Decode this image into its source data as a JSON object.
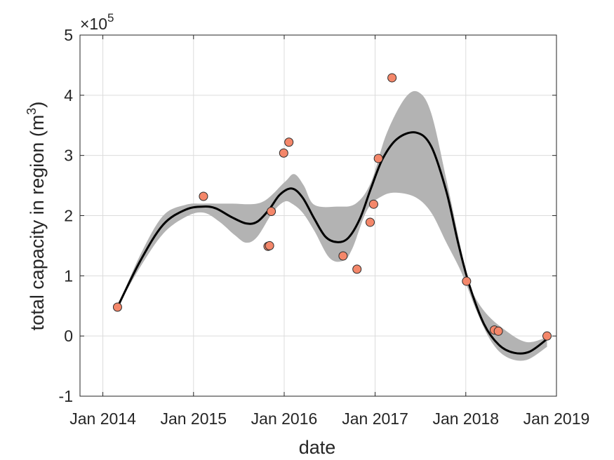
{
  "chart_data": {
    "type": "line",
    "xlabel": "date",
    "ylabel_text": "total capacity in region (m",
    "ylabel_sup": "3",
    "ylabel_close": ")",
    "exponent_base": "×10",
    "exponent_power": "5",
    "y_scale": 100000,
    "xlim": [
      "2013-10-01",
      "2019-01-01"
    ],
    "ylim": [
      -1,
      5
    ],
    "x_ticks": [
      "2014-01-01",
      "2015-01-01",
      "2016-01-01",
      "2017-01-01",
      "2018-01-01",
      "2019-01-01"
    ],
    "x_tick_labels": [
      "Jan 2014",
      "Jan 2015",
      "Jan 2016",
      "Jan 2017",
      "Jan 2018",
      "Jan 2019"
    ],
    "y_ticks": [
      -1,
      0,
      1,
      2,
      3,
      4,
      5
    ],
    "y_tick_labels": [
      "-1",
      "0",
      "1",
      "2",
      "3",
      "4",
      "5"
    ],
    "grid": true,
    "colors": {
      "points": "#f4876a",
      "point_edge": "#2b2b2b",
      "line": "#000000",
      "band": "#b3b3b3",
      "grid": "#dcdcdc",
      "axis": "#262626"
    },
    "series": [
      {
        "kind": "scatter",
        "points": [
          {
            "x": "2014-03-01",
            "y": 0.48
          },
          {
            "x": "2015-02-10",
            "y": 2.32
          },
          {
            "x": "2015-10-28",
            "y": 1.49
          },
          {
            "x": "2015-11-03",
            "y": 1.5
          },
          {
            "x": "2015-11-10",
            "y": 2.07
          },
          {
            "x": "2015-12-30",
            "y": 3.04
          },
          {
            "x": "2016-01-20",
            "y": 3.22
          },
          {
            "x": "2016-08-25",
            "y": 1.33
          },
          {
            "x": "2016-10-20",
            "y": 1.11
          },
          {
            "x": "2016-12-12",
            "y": 1.89
          },
          {
            "x": "2016-12-26",
            "y": 2.19
          },
          {
            "x": "2017-01-14",
            "y": 2.95
          },
          {
            "x": "2017-03-10",
            "y": 4.29
          },
          {
            "x": "2018-01-04",
            "y": 0.91
          },
          {
            "x": "2018-04-26",
            "y": 0.1
          },
          {
            "x": "2018-05-12",
            "y": 0.08
          },
          {
            "x": "2018-11-24",
            "y": 0.0
          }
        ]
      },
      {
        "kind": "line",
        "points": [
          {
            "x": "2014-03-01",
            "y": 0.48
          },
          {
            "x": "2014-06-01",
            "y": 1.25
          },
          {
            "x": "2014-09-01",
            "y": 1.85
          },
          {
            "x": "2014-12-01",
            "y": 2.1
          },
          {
            "x": "2015-02-10",
            "y": 2.15
          },
          {
            "x": "2015-04-01",
            "y": 2.12
          },
          {
            "x": "2015-06-01",
            "y": 1.98
          },
          {
            "x": "2015-08-01",
            "y": 1.87
          },
          {
            "x": "2015-09-15",
            "y": 1.9
          },
          {
            "x": "2015-11-01",
            "y": 2.1
          },
          {
            "x": "2015-12-15",
            "y": 2.35
          },
          {
            "x": "2016-02-01",
            "y": 2.45
          },
          {
            "x": "2016-03-15",
            "y": 2.3
          },
          {
            "x": "2016-05-01",
            "y": 1.95
          },
          {
            "x": "2016-06-15",
            "y": 1.65
          },
          {
            "x": "2016-08-01",
            "y": 1.56
          },
          {
            "x": "2016-09-15",
            "y": 1.63
          },
          {
            "x": "2016-11-01",
            "y": 1.95
          },
          {
            "x": "2016-12-15",
            "y": 2.45
          },
          {
            "x": "2017-02-01",
            "y": 2.95
          },
          {
            "x": "2017-04-01",
            "y": 3.28
          },
          {
            "x": "2017-06-15",
            "y": 3.38
          },
          {
            "x": "2017-08-15",
            "y": 3.15
          },
          {
            "x": "2017-10-15",
            "y": 2.4
          },
          {
            "x": "2017-12-01",
            "y": 1.55
          },
          {
            "x": "2018-01-15",
            "y": 0.85
          },
          {
            "x": "2018-03-15",
            "y": 0.2
          },
          {
            "x": "2018-05-15",
            "y": -0.15
          },
          {
            "x": "2018-07-15",
            "y": -0.28
          },
          {
            "x": "2018-09-15",
            "y": -0.26
          },
          {
            "x": "2018-11-24",
            "y": -0.05
          }
        ]
      },
      {
        "kind": "band",
        "upper": [
          {
            "x": "2014-03-01",
            "y": 0.48
          },
          {
            "x": "2014-06-01",
            "y": 1.35
          },
          {
            "x": "2014-09-01",
            "y": 2.0
          },
          {
            "x": "2014-12-01",
            "y": 2.18
          },
          {
            "x": "2015-02-10",
            "y": 2.2
          },
          {
            "x": "2015-06-01",
            "y": 2.2
          },
          {
            "x": "2015-10-01",
            "y": 2.22
          },
          {
            "x": "2016-01-01",
            "y": 2.55
          },
          {
            "x": "2016-02-10",
            "y": 2.69
          },
          {
            "x": "2016-03-20",
            "y": 2.5
          },
          {
            "x": "2016-05-01",
            "y": 2.18
          },
          {
            "x": "2016-08-01",
            "y": 2.15
          },
          {
            "x": "2016-10-15",
            "y": 2.2
          },
          {
            "x": "2016-12-15",
            "y": 2.55
          },
          {
            "x": "2017-02-15",
            "y": 3.35
          },
          {
            "x": "2017-05-01",
            "y": 3.95
          },
          {
            "x": "2017-06-25",
            "y": 4.05
          },
          {
            "x": "2017-08-15",
            "y": 3.7
          },
          {
            "x": "2017-10-15",
            "y": 2.6
          },
          {
            "x": "2017-12-15",
            "y": 1.4
          },
          {
            "x": "2018-01-15",
            "y": 0.85
          },
          {
            "x": "2018-03-15",
            "y": 0.42
          },
          {
            "x": "2018-06-01",
            "y": 0.12
          },
          {
            "x": "2018-09-01",
            "y": -0.1
          },
          {
            "x": "2018-11-24",
            "y": -0.02
          }
        ],
        "lower": [
          {
            "x": "2014-03-01",
            "y": 0.48
          },
          {
            "x": "2014-06-01",
            "y": 1.15
          },
          {
            "x": "2014-09-01",
            "y": 1.7
          },
          {
            "x": "2014-12-01",
            "y": 1.98
          },
          {
            "x": "2015-02-10",
            "y": 2.05
          },
          {
            "x": "2015-04-15",
            "y": 1.9
          },
          {
            "x": "2015-06-15",
            "y": 1.68
          },
          {
            "x": "2015-08-01",
            "y": 1.55
          },
          {
            "x": "2015-09-15",
            "y": 1.65
          },
          {
            "x": "2015-11-15",
            "y": 2.05
          },
          {
            "x": "2016-01-01",
            "y": 2.23
          },
          {
            "x": "2016-02-01",
            "y": 2.2
          },
          {
            "x": "2016-03-15",
            "y": 2.05
          },
          {
            "x": "2016-05-01",
            "y": 1.75
          },
          {
            "x": "2016-07-01",
            "y": 1.3
          },
          {
            "x": "2016-08-25",
            "y": 1.25
          },
          {
            "x": "2016-10-01",
            "y": 1.45
          },
          {
            "x": "2016-12-01",
            "y": 2.1
          },
          {
            "x": "2017-02-01",
            "y": 2.33
          },
          {
            "x": "2017-04-01",
            "y": 2.38
          },
          {
            "x": "2017-06-15",
            "y": 2.3
          },
          {
            "x": "2017-08-15",
            "y": 2.05
          },
          {
            "x": "2017-10-15",
            "y": 1.55
          },
          {
            "x": "2017-12-15",
            "y": 1.05
          },
          {
            "x": "2018-02-15",
            "y": 0.4
          },
          {
            "x": "2018-04-15",
            "y": -0.1
          },
          {
            "x": "2018-06-15",
            "y": -0.35
          },
          {
            "x": "2018-09-01",
            "y": -0.4
          },
          {
            "x": "2018-11-24",
            "y": -0.18
          }
        ]
      }
    ]
  }
}
